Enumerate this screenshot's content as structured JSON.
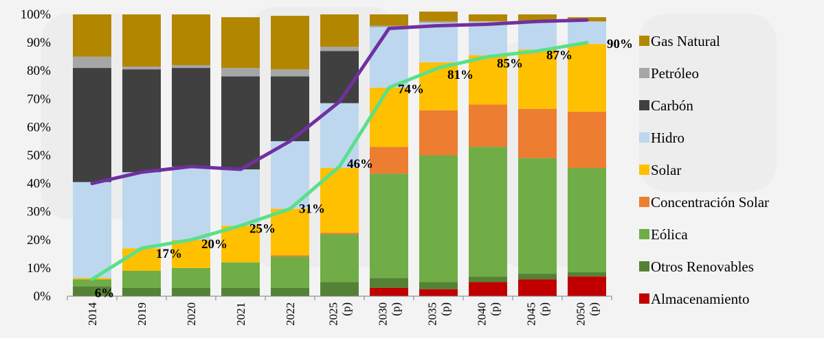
{
  "chart_data": {
    "type": "bar",
    "stacked": true,
    "title": "",
    "xlabel": "",
    "ylabel": "",
    "ylim": [
      0,
      100
    ],
    "y_ticks": [
      "0%",
      "10%",
      "20%",
      "30%",
      "40%",
      "50%",
      "60%",
      "70%",
      "80%",
      "90%",
      "100%"
    ],
    "categories": [
      [
        "2014"
      ],
      [
        "2019"
      ],
      [
        "2020"
      ],
      [
        "2021"
      ],
      [
        "2022"
      ],
      [
        "2025",
        "(p)"
      ],
      [
        "2030",
        "(p)"
      ],
      [
        "2035",
        "(p)"
      ],
      [
        "2040",
        "(p)"
      ],
      [
        "2045",
        "(p)"
      ],
      [
        "2050",
        "(p)"
      ]
    ],
    "series": [
      {
        "name": "Almacenamiento",
        "color": "#c00000",
        "values": [
          0,
          0,
          0,
          0,
          0,
          0,
          3,
          2.5,
          5,
          6,
          7
        ]
      },
      {
        "name": "Otros Renovables",
        "color": "#548235",
        "values": [
          3.5,
          3,
          3,
          3,
          3,
          5,
          3.5,
          2.5,
          2,
          2,
          1.5
        ]
      },
      {
        "name": "Eólica",
        "color": "#70ad47",
        "values": [
          2.5,
          6,
          7,
          9,
          11,
          17,
          37,
          45,
          46,
          41,
          37
        ]
      },
      {
        "name": "Concentración Solar",
        "color": "#ed7d31",
        "values": [
          0,
          0,
          0,
          0,
          0.5,
          0.5,
          9.5,
          16,
          15,
          17.5,
          20
        ]
      },
      {
        "name": "Solar",
        "color": "#ffc000",
        "values": [
          0.5,
          8,
          10,
          13,
          16.5,
          23,
          21,
          17,
          17.5,
          21,
          24
        ]
      },
      {
        "name": "Hidro",
        "color": "#bdd7ee",
        "values": [
          34,
          27,
          26,
          20,
          24,
          23,
          21.5,
          14,
          12,
          10,
          8
        ]
      },
      {
        "name": "Carbón",
        "color": "#404040",
        "values": [
          40.5,
          36.5,
          35,
          33,
          23,
          18.5,
          0,
          0,
          0,
          0,
          0
        ]
      },
      {
        "name": "Petróleo",
        "color": "#a6a6a6",
        "values": [
          4,
          1,
          1,
          3,
          2.5,
          1.5,
          0.5,
          0.5,
          0,
          0,
          0
        ]
      },
      {
        "name": "Gas Natural",
        "color": "#b38600",
        "values": [
          15,
          18.5,
          18,
          18,
          19,
          11.5,
          4,
          3.5,
          2.5,
          2.5,
          1.5
        ]
      }
    ],
    "lines": [
      {
        "color": "#59e08a",
        "values": [
          6,
          17,
          20,
          25,
          31,
          46,
          74,
          81,
          85,
          87,
          90
        ],
        "labels": [
          "6%",
          "17%",
          "20%",
          "25%",
          "31%",
          "46%",
          "74%",
          "81%",
          "85%",
          "87%",
          "90%"
        ]
      },
      {
        "color": "#7030a0",
        "values": [
          40,
          44,
          46,
          45,
          55,
          69,
          95,
          96,
          96.5,
          97.5,
          98
        ]
      }
    ],
    "legend_position": "right",
    "grid": false
  }
}
